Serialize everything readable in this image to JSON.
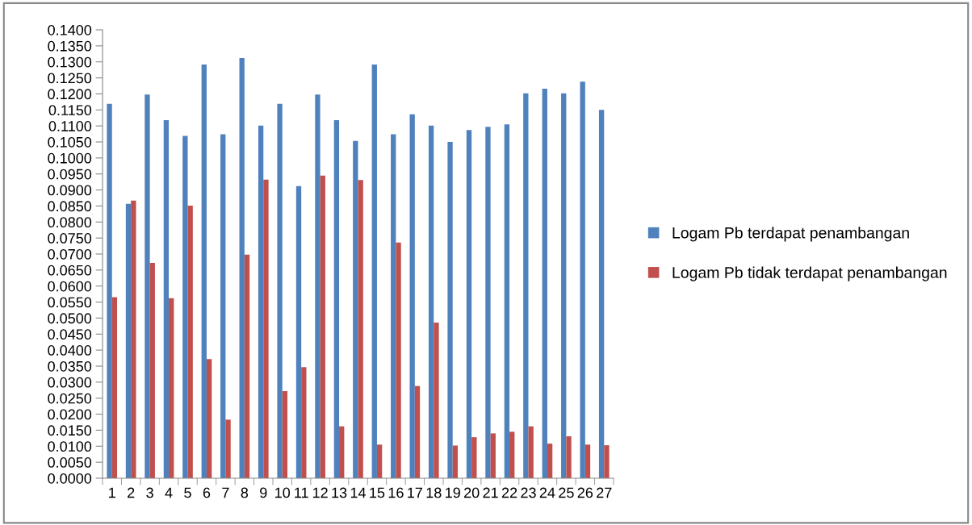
{
  "chart_data": {
    "type": "bar",
    "categories": [
      "1",
      "2",
      "3",
      "4",
      "5",
      "6",
      "7",
      "8",
      "9",
      "10",
      "11",
      "12",
      "13",
      "14",
      "15",
      "16",
      "17",
      "18",
      "19",
      "20",
      "21",
      "22",
      "23",
      "24",
      "25",
      "26",
      "27"
    ],
    "series": [
      {
        "name": "Logam Pb terdapat penambangan",
        "color": "#4f81bd",
        "values": [
          0.1169,
          0.0857,
          0.1198,
          0.1118,
          0.1069,
          0.1292,
          0.1074,
          0.1312,
          0.1101,
          0.1169,
          0.0912,
          0.1198,
          0.1118,
          0.1053,
          0.1292,
          0.1074,
          0.1136,
          0.1101,
          0.105,
          0.1087,
          0.1097,
          0.1105,
          0.1202,
          0.1216,
          0.1202,
          0.1238,
          0.115
        ]
      },
      {
        "name": "Logam Pb tidak terdapat penambangan",
        "color": "#c0504d",
        "values": [
          0.0565,
          0.0867,
          0.0672,
          0.0562,
          0.0851,
          0.0372,
          0.0183,
          0.0698,
          0.0932,
          0.0272,
          0.0347,
          0.0945,
          0.0162,
          0.0931,
          0.0105,
          0.0736,
          0.0288,
          0.0486,
          0.0102,
          0.0128,
          0.014,
          0.0145,
          0.0162,
          0.0108,
          0.0131,
          0.0105,
          0.0103
        ]
      }
    ],
    "ylim": [
      0,
      0.14
    ],
    "yticks": [
      {
        "value": 0,
        "label": "0.0000"
      },
      {
        "value": 0.005,
        "label": "0.0050"
      },
      {
        "value": 0.01,
        "label": "0.0100"
      },
      {
        "value": 0.015,
        "label": "0.0150"
      },
      {
        "value": 0.02,
        "label": "0.0200"
      },
      {
        "value": 0.025,
        "label": "0.0250"
      },
      {
        "value": 0.03,
        "label": "0.0300"
      },
      {
        "value": 0.035,
        "label": "0.0350"
      },
      {
        "value": 0.04,
        "label": "0.0400"
      },
      {
        "value": 0.045,
        "label": "0.0450"
      },
      {
        "value": 0.05,
        "label": "0.0500"
      },
      {
        "value": 0.055,
        "label": "0.0550"
      },
      {
        "value": 0.06,
        "label": "0.0600"
      },
      {
        "value": 0.065,
        "label": "0.0650"
      },
      {
        "value": 0.07,
        "label": "0.0700"
      },
      {
        "value": 0.075,
        "label": "0.0750"
      },
      {
        "value": 0.08,
        "label": "0.0800"
      },
      {
        "value": 0.085,
        "label": "0.0850"
      },
      {
        "value": 0.09,
        "label": "0.0900"
      },
      {
        "value": 0.095,
        "label": "0.0950"
      },
      {
        "value": 0.1,
        "label": "0.1000"
      },
      {
        "value": 0.105,
        "label": "0.1050"
      },
      {
        "value": 0.11,
        "label": "0.1100"
      },
      {
        "value": 0.115,
        "label": "0.1150"
      },
      {
        "value": 0.12,
        "label": "0.1200"
      },
      {
        "value": 0.125,
        "label": "0.1250"
      },
      {
        "value": 0.13,
        "label": "0.1300"
      },
      {
        "value": 0.135,
        "label": "0.1350"
      },
      {
        "value": 0.14,
        "label": "0.1400"
      }
    ],
    "grid": false,
    "legend": "right"
  }
}
